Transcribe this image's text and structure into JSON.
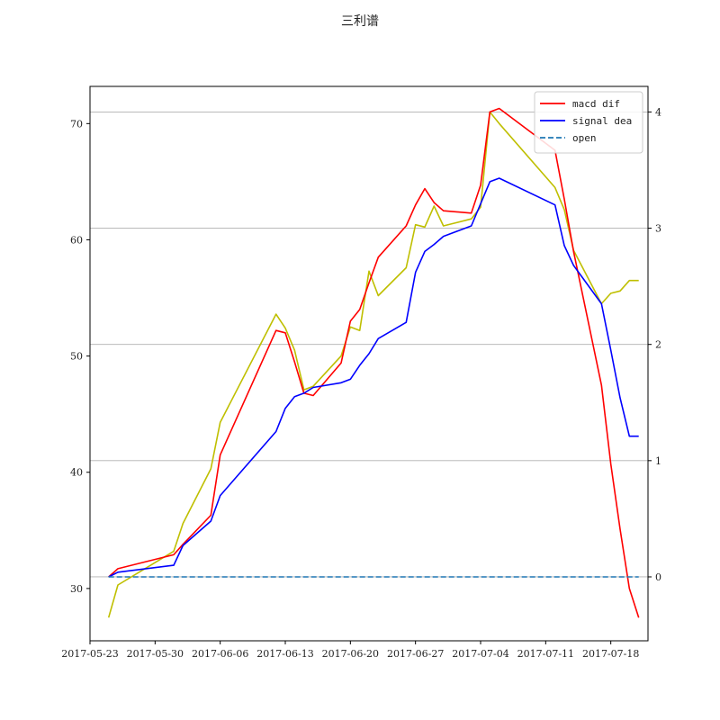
{
  "chart_data": {
    "type": "line",
    "title": "三利谱",
    "xlabel": "",
    "ylabel": "",
    "xlim": [
      "2017-05-23",
      "2017-07-22"
    ],
    "x_ticks": [
      "2017-05-23",
      "2017-05-30",
      "2017-06-06",
      "2017-06-13",
      "2017-06-20",
      "2017-06-27",
      "2017-07-04",
      "2017-07-11",
      "2017-07-18"
    ],
    "left_axis": {
      "ylim": [
        25.5,
        73.2
      ],
      "ticks": [
        30,
        40,
        50,
        60,
        70
      ]
    },
    "right_axis": {
      "ylim": [
        -0.55,
        4.22
      ],
      "ticks": [
        0,
        1,
        2,
        3,
        4
      ],
      "grid": true
    },
    "legend_position": "top-right",
    "price_series": {
      "axis": "left",
      "color": "#bfbf00",
      "x": [
        "2017-05-25",
        "2017-05-26",
        "2017-06-01",
        "2017-06-02",
        "2017-06-05",
        "2017-06-06",
        "2017-06-12",
        "2017-06-13",
        "2017-06-14",
        "2017-06-15",
        "2017-06-16",
        "2017-06-19",
        "2017-06-20",
        "2017-06-21",
        "2017-06-22",
        "2017-06-23",
        "2017-06-26",
        "2017-06-27",
        "2017-06-28",
        "2017-06-29",
        "2017-06-30",
        "2017-07-03",
        "2017-07-04",
        "2017-07-05",
        "2017-07-06",
        "2017-07-12",
        "2017-07-13",
        "2017-07-14",
        "2017-07-17",
        "2017-07-18",
        "2017-07-19",
        "2017-07-20",
        "2017-07-21"
      ],
      "values": [
        27.5,
        30.3,
        33.2,
        35.6,
        40.3,
        44.3,
        53.6,
        52.4,
        50.5,
        47.1,
        47.4,
        50.0,
        52.5,
        52.2,
        57.3,
        55.2,
        57.6,
        61.3,
        61.1,
        62.9,
        61.2,
        61.8,
        62.8,
        71.0,
        70.0,
        64.5,
        62.6,
        59.1,
        54.5,
        55.4,
        55.6,
        56.5,
        56.5
      ]
    },
    "series": [
      {
        "name": "macd dif",
        "axis": "right",
        "color": "#ff0000",
        "style": "solid",
        "x": [
          "2017-05-25",
          "2017-05-26",
          "2017-06-01",
          "2017-06-02",
          "2017-06-05",
          "2017-06-06",
          "2017-06-12",
          "2017-06-13",
          "2017-06-14",
          "2017-06-15",
          "2017-06-16",
          "2017-06-19",
          "2017-06-20",
          "2017-06-21",
          "2017-06-22",
          "2017-06-23",
          "2017-06-26",
          "2017-06-27",
          "2017-06-28",
          "2017-06-29",
          "2017-06-30",
          "2017-07-03",
          "2017-07-04",
          "2017-07-05",
          "2017-07-06",
          "2017-07-12",
          "2017-07-13",
          "2017-07-14",
          "2017-07-17",
          "2017-07-18",
          "2017-07-19",
          "2017-07-20",
          "2017-07-21"
        ],
        "values": [
          0.0,
          0.07,
          0.19,
          0.28,
          0.53,
          1.05,
          2.12,
          2.1,
          1.85,
          1.58,
          1.56,
          1.84,
          2.2,
          2.3,
          2.53,
          2.75,
          3.02,
          3.2,
          3.34,
          3.22,
          3.15,
          3.13,
          3.37,
          4.0,
          4.03,
          3.67,
          3.25,
          2.8,
          1.65,
          0.97,
          0.41,
          -0.1,
          -0.35
        ]
      },
      {
        "name": "signal dea",
        "axis": "right",
        "color": "#0000ff",
        "style": "solid",
        "x": [
          "2017-05-25",
          "2017-05-26",
          "2017-06-01",
          "2017-06-02",
          "2017-06-05",
          "2017-06-06",
          "2017-06-12",
          "2017-06-13",
          "2017-06-14",
          "2017-06-15",
          "2017-06-16",
          "2017-06-19",
          "2017-06-20",
          "2017-06-21",
          "2017-06-22",
          "2017-06-23",
          "2017-06-26",
          "2017-06-27",
          "2017-06-28",
          "2017-06-29",
          "2017-06-30",
          "2017-07-03",
          "2017-07-04",
          "2017-07-05",
          "2017-07-06",
          "2017-07-12",
          "2017-07-13",
          "2017-07-14",
          "2017-07-17",
          "2017-07-18",
          "2017-07-19",
          "2017-07-20",
          "2017-07-21"
        ],
        "values": [
          0.0,
          0.04,
          0.1,
          0.27,
          0.48,
          0.7,
          1.25,
          1.45,
          1.55,
          1.58,
          1.63,
          1.67,
          1.7,
          1.82,
          1.92,
          2.05,
          2.19,
          2.62,
          2.8,
          2.86,
          2.93,
          3.02,
          3.21,
          3.4,
          3.43,
          3.2,
          2.85,
          2.68,
          2.35,
          1.95,
          1.54,
          1.21,
          1.21
        ]
      },
      {
        "name": "open",
        "axis": "right",
        "color": "#1f77b4",
        "style": "dashed",
        "x": [
          "2017-05-25",
          "2017-07-21"
        ],
        "values": [
          0.0,
          0.0
        ]
      }
    ],
    "grid": "horizontal lines at right-axis ticks"
  }
}
